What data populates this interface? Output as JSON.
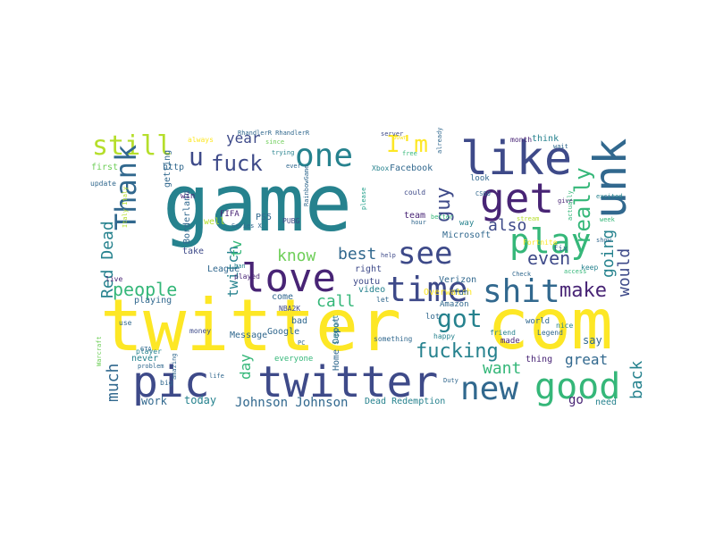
{
  "palette": {
    "dark_purple": "#482475",
    "indigo": "#3e4a89",
    "slate_blue": "#31688e",
    "teal": "#26828e",
    "sea_green": "#1f9e89",
    "green": "#35b779",
    "light_green": "#6ece58",
    "lime": "#b5de2b",
    "yellow": "#fde725"
  },
  "words": [
    {
      "text": "game",
      "color": "#26828e"
    },
    {
      "text": "twitter",
      "color": "#fde725"
    },
    {
      "text": "com",
      "color": "#fde725"
    },
    {
      "text": "pic",
      "color": "#3e4a89"
    },
    {
      "text": "twitter",
      "color": "#3e4a89"
    },
    {
      "text": "like",
      "color": "#3e4a89"
    },
    {
      "text": "unk",
      "color": "#31688e"
    },
    {
      "text": "one",
      "color": "#26828e"
    },
    {
      "text": "get",
      "color": "#482475"
    },
    {
      "text": "still",
      "color": "#b5de2b"
    },
    {
      "text": "love",
      "color": "#482475"
    },
    {
      "text": "time",
      "color": "#3e4a89"
    },
    {
      "text": "play",
      "color": "#35b779"
    },
    {
      "text": "shit",
      "color": "#31688e"
    },
    {
      "text": "see",
      "color": "#3e4a89"
    },
    {
      "text": "new",
      "color": "#31688e"
    },
    {
      "text": "good",
      "color": "#35b779"
    },
    {
      "text": "Thank",
      "color": "#31688e"
    },
    {
      "text": "u",
      "color": "#3e4a89"
    },
    {
      "text": "fuck",
      "color": "#3e4a89"
    },
    {
      "text": "I'm",
      "color": "#fde725"
    },
    {
      "text": "got",
      "color": "#26828e"
    },
    {
      "text": "people",
      "color": "#35b779"
    },
    {
      "text": "know",
      "color": "#6ece58"
    },
    {
      "text": "best",
      "color": "#31688e"
    },
    {
      "text": "even",
      "color": "#3e4a89"
    },
    {
      "text": "make",
      "color": "#482475"
    },
    {
      "text": "really",
      "color": "#35b779"
    },
    {
      "text": "guy",
      "color": "#3e4a89"
    },
    {
      "text": "also",
      "color": "#3e4a89"
    },
    {
      "text": "going",
      "color": "#26828e"
    },
    {
      "text": "would",
      "color": "#3e4a89"
    },
    {
      "text": "Red Dead",
      "color": "#26828e"
    },
    {
      "text": "twitch",
      "color": "#26828e"
    },
    {
      "text": "tv",
      "color": "#35b779"
    },
    {
      "text": "year",
      "color": "#3e4a89"
    },
    {
      "text": "call",
      "color": "#35b779"
    },
    {
      "text": "fucking",
      "color": "#26828e"
    },
    {
      "text": "want",
      "color": "#35b779"
    },
    {
      "text": "back",
      "color": "#26828e"
    },
    {
      "text": "much",
      "color": "#31688e"
    },
    {
      "text": "day",
      "color": "#35b779"
    },
    {
      "text": "great",
      "color": "#31688e"
    },
    {
      "text": "Johnson Johnson",
      "color": "#31688e"
    },
    {
      "text": "today",
      "color": "#26828e"
    },
    {
      "text": "work",
      "color": "#31688e"
    },
    {
      "text": "go",
      "color": "#482475"
    },
    {
      "text": "Dead Redemption",
      "color": "#26828e"
    },
    {
      "text": "say",
      "color": "#31688e"
    },
    {
      "text": "thing",
      "color": "#482475"
    },
    {
      "text": "need",
      "color": "#26828e"
    },
    {
      "text": "Microsoft",
      "color": "#31688e"
    },
    {
      "text": "Verizon",
      "color": "#31688e"
    },
    {
      "text": "Overwatch",
      "color": "#fde725"
    },
    {
      "text": "Facebook",
      "color": "#31688e"
    },
    {
      "text": "League",
      "color": "#31688e"
    },
    {
      "text": "playing",
      "color": "#31688e"
    },
    {
      "text": "Borderland",
      "color": "#31688e"
    },
    {
      "text": "FIFA",
      "color": "#482475"
    },
    {
      "text": "PS5",
      "color": "#31688e"
    },
    {
      "text": "PUBG",
      "color": "#3e4a89"
    },
    {
      "text": "http",
      "color": "#31688e"
    },
    {
      "text": "win",
      "color": "#482475"
    },
    {
      "text": "take",
      "color": "#3e4a89"
    },
    {
      "text": "well",
      "color": "#b5de2b"
    },
    {
      "text": "Message",
      "color": "#31688e"
    },
    {
      "text": "Google",
      "color": "#31688e"
    },
    {
      "text": "Home Depot",
      "color": "#31688e"
    },
    {
      "text": "everyone",
      "color": "#35b779"
    },
    {
      "text": "never",
      "color": "#26828e"
    },
    {
      "text": "right",
      "color": "#3e4a89"
    },
    {
      "text": "youtu",
      "color": "#3e4a89"
    },
    {
      "text": "video",
      "color": "#26828e"
    },
    {
      "text": "fun",
      "color": "#31688e"
    },
    {
      "text": "lot",
      "color": "#31688e"
    },
    {
      "text": "Amazon",
      "color": "#31688e"
    },
    {
      "text": "world",
      "color": "#31688e"
    },
    {
      "text": "made",
      "color": "#482475"
    },
    {
      "text": "bad",
      "color": "#31688e"
    },
    {
      "text": "come",
      "color": "#31688e"
    },
    {
      "text": "NBA2K",
      "color": "#3e4a89"
    },
    {
      "text": "team",
      "color": "#482475"
    },
    {
      "text": "look",
      "color": "#31688e"
    },
    {
      "text": "way",
      "color": "#26828e"
    },
    {
      "text": "fix",
      "color": "#31688e"
    },
    {
      "text": "think",
      "color": "#26828e"
    },
    {
      "text": "first",
      "color": "#6ece58"
    },
    {
      "text": "always",
      "color": "#fde725"
    },
    {
      "text": "update",
      "color": "#31688e"
    },
    {
      "text": "getting",
      "color": "#31688e"
    },
    {
      "text": "RhandlerR RhandlerR",
      "color": "#31688e"
    },
    {
      "text": "server",
      "color": "#3e4a89"
    },
    {
      "text": "Xbox",
      "color": "#26828e"
    },
    {
      "text": "since",
      "color": "#6ece58"
    },
    {
      "text": "ever",
      "color": "#31688e"
    },
    {
      "text": "trying",
      "color": "#26828e"
    },
    {
      "text": "free",
      "color": "#35b779"
    },
    {
      "text": "down",
      "color": "#fde725"
    },
    {
      "text": "already",
      "color": "#31688e"
    },
    {
      "text": "month",
      "color": "#482475"
    },
    {
      "text": "wait",
      "color": "#31688e"
    },
    {
      "text": "please",
      "color": "#1f9e89"
    },
    {
      "text": "could",
      "color": "#3e4a89"
    },
    {
      "text": "better",
      "color": "#35b779"
    },
    {
      "text": "hour",
      "color": "#31688e"
    },
    {
      "text": "excited",
      "color": "#26828e"
    },
    {
      "text": "Series X",
      "color": "#31688e"
    },
    {
      "text": "live",
      "color": "#482475"
    },
    {
      "text": "Italy Italy",
      "color": "#b5de2b"
    },
    {
      "text": "RainbowGame",
      "color": "#31688e"
    },
    {
      "text": "played",
      "color": "#482475"
    },
    {
      "text": "ban",
      "color": "#26828e"
    },
    {
      "text": "help",
      "color": "#3e4a89"
    },
    {
      "text": "week",
      "color": "#35b779"
    },
    {
      "text": "Fortnite",
      "color": "#fde725"
    },
    {
      "text": "stream",
      "color": "#b5de2b"
    },
    {
      "text": "keep",
      "color": "#26828e"
    },
    {
      "text": "access",
      "color": "#35b779"
    },
    {
      "text": "Check",
      "color": "#31688e"
    },
    {
      "text": "Legend",
      "color": "#31688e"
    },
    {
      "text": "nice",
      "color": "#26828e"
    },
    {
      "text": "happy",
      "color": "#26828e"
    },
    {
      "text": "something",
      "color": "#31688e"
    },
    {
      "text": "support",
      "color": "#26828e"
    },
    {
      "text": "friend",
      "color": "#26828e"
    },
    {
      "text": "Duty",
      "color": "#31688e"
    },
    {
      "text": "life",
      "color": "#31688e"
    },
    {
      "text": "big",
      "color": "#31688e"
    },
    {
      "text": "amazing",
      "color": "#31688e"
    },
    {
      "text": "player",
      "color": "#26828e"
    },
    {
      "text": "problem",
      "color": "#31688e"
    },
    {
      "text": "money",
      "color": "#3e4a89"
    },
    {
      "text": "PC",
      "color": "#31688e"
    },
    {
      "text": "Warcraft",
      "color": "#6ece58"
    },
    {
      "text": "GTA",
      "color": "#31688e"
    },
    {
      "text": "use",
      "color": "#31688e"
    },
    {
      "text": "give",
      "color": "#482475"
    },
    {
      "text": "actually",
      "color": "#35b779"
    },
    {
      "text": "CSGO",
      "color": "#31688e"
    },
    {
      "text": "let",
      "color": "#31688e"
    },
    {
      "text": "show",
      "color": "#31688e"
    }
  ]
}
